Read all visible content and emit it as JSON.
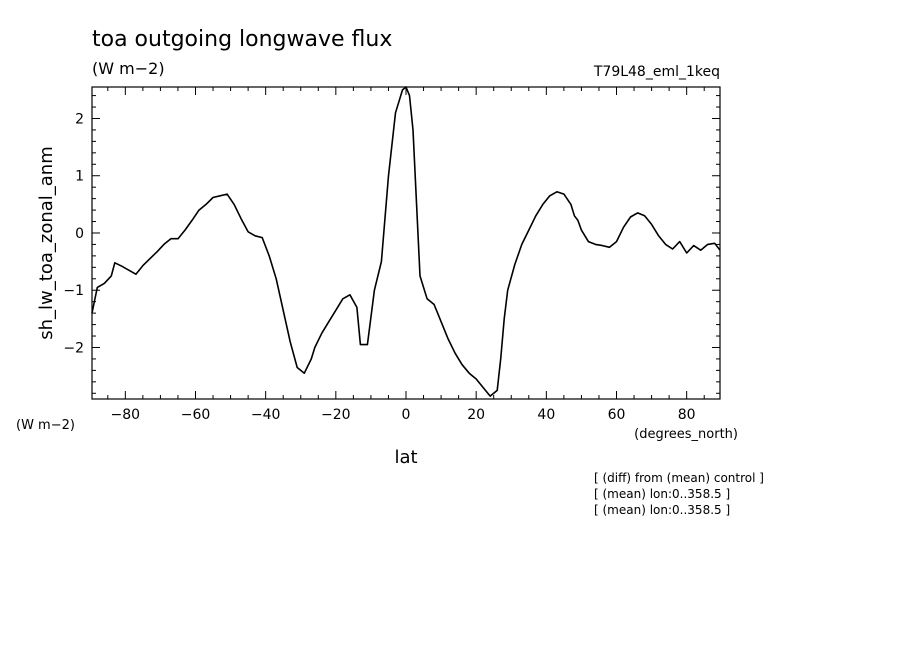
{
  "chart_data": {
    "type": "line",
    "title": "toa outgoing longwave flux",
    "units_label": "(W m−2)",
    "run_label": "T79L48_eml_1keq",
    "ylabel": "sh_lw_toa_zonal_anm",
    "y_units_label": "(W m−2)",
    "xlabel": "lat",
    "x_units_label": "(degrees_north)",
    "xlim": [
      -89.5,
      89.5
    ],
    "ylim": [
      -2.9,
      2.55
    ],
    "x_ticks": [
      -80,
      -60,
      -40,
      -20,
      0,
      20,
      40,
      60,
      80
    ],
    "y_ticks": [
      -2,
      -1,
      0,
      1,
      2
    ],
    "notes": [
      "[ (diff) from (mean) control ]",
      "[ (mean) lon:0..358.5 ]",
      "[ (mean) lon:0..358.5 ]"
    ],
    "series": [
      {
        "x": [
          -89.5,
          -88,
          -86,
          -84,
          -83,
          -81,
          -79,
          -77,
          -75,
          -73,
          -71,
          -69,
          -67,
          -65,
          -63,
          -61,
          -59,
          -57,
          -55,
          -53,
          -51,
          -49,
          -47,
          -45,
          -43,
          -41,
          -39,
          -37,
          -35,
          -33,
          -31,
          -29,
          -27,
          -26,
          -24,
          -22,
          -20,
          -18,
          -16,
          -14,
          -13,
          -11,
          -9,
          -7,
          -5,
          -3,
          -1,
          0,
          1,
          2,
          4,
          6,
          8,
          10,
          12,
          14,
          16,
          18,
          20,
          22,
          24,
          26,
          27,
          28,
          29,
          31,
          33,
          35,
          37,
          39,
          41,
          43,
          45,
          47,
          48,
          49,
          50,
          52,
          54,
          56,
          58,
          60,
          62,
          64,
          66,
          68,
          70,
          72,
          74,
          76,
          78,
          80,
          82,
          84,
          86,
          88,
          89.5
        ],
        "y": [
          -1.4,
          -0.95,
          -0.88,
          -0.75,
          -0.52,
          -0.58,
          -0.65,
          -0.72,
          -0.57,
          -0.45,
          -0.33,
          -0.2,
          -0.1,
          -0.1,
          0.05,
          0.22,
          0.4,
          0.5,
          0.62,
          0.65,
          0.68,
          0.5,
          0.25,
          0.02,
          -0.05,
          -0.08,
          -0.4,
          -0.8,
          -1.35,
          -1.9,
          -2.35,
          -2.45,
          -2.2,
          -2.0,
          -1.75,
          -1.55,
          -1.35,
          -1.15,
          -1.08,
          -1.3,
          -1.95,
          -1.95,
          -1.0,
          -0.5,
          1.0,
          2.1,
          2.5,
          2.55,
          2.4,
          1.8,
          -0.75,
          -1.15,
          -1.25,
          -1.55,
          -1.85,
          -2.1,
          -2.3,
          -2.45,
          -2.55,
          -2.7,
          -2.85,
          -2.75,
          -2.2,
          -1.5,
          -1.0,
          -0.55,
          -0.2,
          0.05,
          0.3,
          0.5,
          0.65,
          0.72,
          0.68,
          0.5,
          0.3,
          0.22,
          0.05,
          -0.15,
          -0.2,
          -0.22,
          -0.25,
          -0.15,
          0.1,
          0.28,
          0.35,
          0.3,
          0.15,
          -0.05,
          -0.2,
          -0.28,
          -0.15,
          -0.35,
          -0.22,
          -0.3,
          -0.2,
          -0.18,
          -0.3
        ]
      }
    ]
  }
}
